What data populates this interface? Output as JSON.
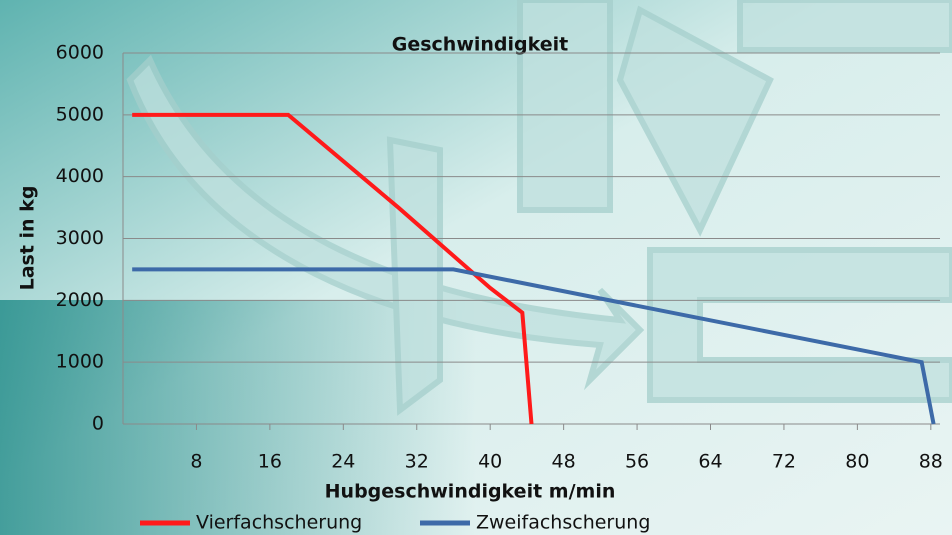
{
  "chart_data": {
    "type": "line",
    "title": "Geschwindigkeit",
    "x_label": "Hubgeschwindigkeit m/min",
    "y_label": "Last in kg",
    "xlim": [
      0,
      89
    ],
    "ylim": [
      0,
      6000
    ],
    "xticks": [
      8,
      16,
      24,
      32,
      40,
      48,
      56,
      64,
      72,
      80,
      88
    ],
    "yticks": [
      0,
      1000,
      2000,
      3000,
      4000,
      5000,
      6000
    ],
    "grid": true,
    "legend": "bottom",
    "series": [
      {
        "name": "Vierfachscherung",
        "color": "#ff1a1a",
        "x": [
          1,
          18,
          30,
          40,
          43.5,
          44.5
        ],
        "values": [
          5000,
          5000,
          3500,
          2200,
          1800,
          0
        ]
      },
      {
        "name": "Zweifachscherung",
        "color": "#3d6aa8",
        "x": [
          1,
          36,
          87,
          88.3
        ],
        "values": [
          2500,
          2500,
          1000,
          0
        ]
      }
    ]
  }
}
